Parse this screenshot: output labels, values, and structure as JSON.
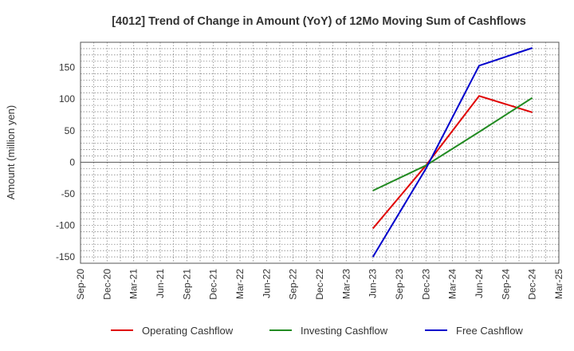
{
  "chart_data": {
    "type": "line",
    "title": "[4012]  Trend of Change in Amount (YoY) of 12Mo Moving Sum of Cashflows",
    "xlabel": "",
    "ylabel": "Amount (million yen)",
    "ylim": [
      -160,
      190
    ],
    "yticks": [
      -150,
      -100,
      -50,
      0,
      50,
      100,
      150
    ],
    "categories": [
      "Sep-20",
      "Dec-20",
      "Mar-21",
      "Jun-21",
      "Sep-21",
      "Dec-21",
      "Mar-22",
      "Jun-22",
      "Sep-22",
      "Dec-22",
      "Mar-23",
      "Jun-23",
      "Sep-23",
      "Dec-23",
      "Mar-24",
      "Jun-24",
      "Sep-24",
      "Dec-24",
      "Mar-25"
    ],
    "grid": true,
    "legend_position": "bottom",
    "series": [
      {
        "name": "Operating Cashflow",
        "color": "#e00000",
        "points": [
          {
            "x": "Jun-23",
            "y": -105
          },
          {
            "x": "Dec-23",
            "y": -5
          },
          {
            "x": "Jun-24",
            "y": 105
          },
          {
            "x": "Dec-24",
            "y": 79
          }
        ]
      },
      {
        "name": "Investing Cashflow",
        "color": "#228b22",
        "points": [
          {
            "x": "Jun-23",
            "y": -45
          },
          {
            "x": "Dec-23",
            "y": -5
          },
          {
            "x": "Jun-24",
            "y": 48
          },
          {
            "x": "Dec-24",
            "y": 102
          }
        ]
      },
      {
        "name": "Free Cashflow",
        "color": "#0000cc",
        "points": [
          {
            "x": "Jun-23",
            "y": -150
          },
          {
            "x": "Dec-23",
            "y": -10
          },
          {
            "x": "Jun-24",
            "y": 153
          },
          {
            "x": "Dec-24",
            "y": 181
          }
        ]
      }
    ]
  }
}
